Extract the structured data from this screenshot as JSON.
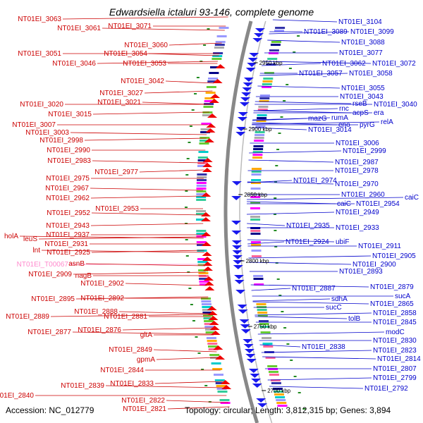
{
  "title": "Edwardsiella ictaluri 93-146, complete genome",
  "footer": {
    "accession": "Accession: NC_012779",
    "topology": "Topology: circular; Length: 3,812,315 bp; Genes: 3,894"
  },
  "colors": {
    "left_label": "#cc0000",
    "right_label": "#0000cc",
    "trna_label": "#ff88cc",
    "backbone": "#888888",
    "tick_green": "#228b22"
  },
  "kbp_marks": [
    "2950 kbp",
    "2900 kbp",
    "2850 kbp",
    "2800 kbp",
    "2750 kbp",
    "2700 kbp"
  ],
  "left_labels": [
    "NT01EI_3063",
    "NT01EI_3071",
    "NT01EI_3061",
    "NT01EI_3060",
    "NT01EI_3051",
    "NT01EI_3054",
    "NT01EI_3046",
    "NT01EI_3053",
    "NT01EI_3042",
    "NT01EI_3027",
    "NT01EI_3020",
    "NT01EI_3021",
    "NT01EI_3015",
    "NT01EI_3007",
    "NT01EI_3003",
    "NT01EI_2998",
    "NT01EI_2990",
    "NT01EI_2983",
    "NT01EI_2977",
    "NT01EI_2975",
    "NT01EI_2967",
    "NT01EI_2962",
    "NT01EI_2953",
    "NT01EI_2952",
    "NT01EI_2943",
    "NT01EI_2937",
    "holA",
    "leuS",
    "NT01EI_2931",
    "lnt",
    "NT01EI_2925",
    "NT01EI_T00067",
    "asnB",
    "NT01EI_2909",
    "nagB",
    "NT01EI_2902",
    "NT01EI_2895",
    "NT01EI_2892",
    "NT01EI_2888",
    "NT01EI_2889",
    "NT01EI_2881",
    "NT01EI_2877",
    "NT01EI_2876",
    "gltA",
    "NT01EI_2849",
    "gpmA",
    "NT01EI_2844",
    "NT01EI_2839",
    "NT01EI_2833",
    "NT01EI_2840",
    "NT01EI_2822",
    "NT01EI_2821"
  ],
  "right_labels": [
    "NT01EI_3104",
    "NT01EI_3089",
    "NT01EI_3099",
    "NT01EI_3088",
    "NT01EI_3077",
    "NT01EI_3062",
    "NT01EI_3072",
    "NT01EI_3057",
    "NT01EI_3058",
    "NT01EI_3055",
    "NT01EI_3043",
    "rnc",
    "rseB",
    "NT01EI_3040",
    "rumA",
    "acpS",
    "era",
    "mazG",
    "eno",
    "pyrG",
    "relA",
    "NT01EI_3014",
    "NT01EI_3006",
    "NT01EI_2999",
    "NT01EI_2987",
    "NT01EI_2978",
    "NT01EI_2974",
    "NT01EI_2970",
    "NT01EI_2960",
    "caiC",
    "caiC",
    "NT01EI_2954",
    "NT01EI_2949",
    "NT01EI_2935",
    "NT01EI_2933",
    "NT01EI_2924",
    "ubiF",
    "NT01EI_2911",
    "NT01EI_2905",
    "NT01EI_2900",
    "NT01EI_2893",
    "NT01EI_2887",
    "NT01EI_2879",
    "sucA",
    "sdhA",
    "NT01EI_2865",
    "sucC",
    "NT01EI_2858",
    "tolB",
    "NT01EI_2845",
    "modC",
    "NT01EI_2838",
    "NT01EI_2830",
    "NT01EI_2823",
    "NT01EI_2814",
    "NT01EI_2807",
    "NT01EI_2799",
    "NT01EI_2792"
  ]
}
